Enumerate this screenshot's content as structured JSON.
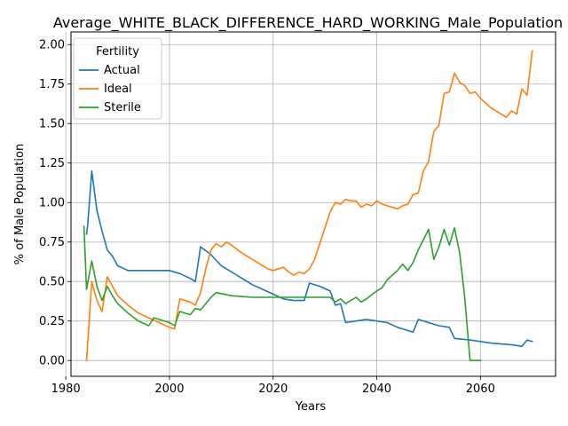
{
  "chart_data": {
    "type": "line",
    "title": "Average_WHITE_BLACK_DIFFERENCE_HARD_WORKING_Male_Population",
    "xlabel": "Years",
    "ylabel": "% of Male Population",
    "xlim": [
      1981,
      2074.5
    ],
    "ylim": [
      -0.1,
      2.08
    ],
    "xticks": [
      1980,
      2000,
      2020,
      2040,
      2060
    ],
    "yticks": [
      0.0,
      0.25,
      0.5,
      0.75,
      1.0,
      1.25,
      1.5,
      1.75,
      2.0
    ],
    "ytick_labels": [
      "0.00",
      "0.25",
      "0.50",
      "0.75",
      "1.00",
      "1.25",
      "1.50",
      "1.75",
      "2.00"
    ],
    "grid": true,
    "legend": {
      "title": "Fertility",
      "position": "top-left"
    },
    "series": [
      {
        "name": "Actual",
        "color": "#1f77b4",
        "x": [
          1984,
          1984.2,
          1985,
          1986,
          1987,
          1988,
          1989,
          1990,
          1992,
          1994,
          1998,
          2000,
          2002,
          2004,
          2005,
          2006,
          2008,
          2010,
          2012,
          2014,
          2016,
          2018,
          2020,
          2022,
          2024,
          2026,
          2027,
          2029,
          2031,
          2032,
          2033,
          2034,
          2036,
          2038,
          2040,
          2042,
          2044,
          2045,
          2046,
          2047,
          2048,
          2050,
          2052,
          2054,
          2055,
          2058,
          2062,
          2066,
          2068,
          2069,
          2070
        ],
        "y": [
          0.8,
          0.85,
          1.2,
          0.95,
          0.82,
          0.7,
          0.66,
          0.6,
          0.57,
          0.57,
          0.57,
          0.57,
          0.55,
          0.52,
          0.5,
          0.72,
          0.67,
          0.6,
          0.56,
          0.52,
          0.48,
          0.45,
          0.42,
          0.39,
          0.38,
          0.38,
          0.49,
          0.47,
          0.44,
          0.35,
          0.36,
          0.24,
          0.25,
          0.26,
          0.25,
          0.24,
          0.21,
          0.2,
          0.19,
          0.18,
          0.26,
          0.24,
          0.22,
          0.21,
          0.14,
          0.13,
          0.11,
          0.1,
          0.09,
          0.13,
          0.12
        ]
      },
      {
        "name": "Ideal",
        "color": "#ff7f0e",
        "x": [
          1984,
          1985,
          1986,
          1987,
          1988,
          1989,
          1990,
          1992,
          1994,
          1996,
          1998,
          2000,
          2001,
          2002,
          2004,
          2005,
          2006,
          2007,
          2008,
          2009,
          2010,
          2011,
          2012,
          2014,
          2016,
          2018,
          2019,
          2020,
          2022,
          2023,
          2024,
          2025,
          2026,
          2027,
          2028,
          2030,
          2031,
          2032,
          2033,
          2034,
          2035,
          2036,
          2037,
          2038,
          2039,
          2040,
          2041,
          2042,
          2043,
          2044,
          2045,
          2046,
          2047,
          2048,
          2049,
          2050,
          2051,
          2052,
          2053,
          2054,
          2055,
          2056,
          2057,
          2058,
          2059,
          2060,
          2061,
          2062,
          2063,
          2064,
          2065,
          2066,
          2067,
          2068,
          2069,
          2070
        ],
        "y": [
          0.0,
          0.5,
          0.38,
          0.31,
          0.53,
          0.47,
          0.41,
          0.35,
          0.3,
          0.27,
          0.24,
          0.21,
          0.2,
          0.39,
          0.37,
          0.35,
          0.43,
          0.58,
          0.7,
          0.74,
          0.72,
          0.75,
          0.73,
          0.68,
          0.64,
          0.6,
          0.58,
          0.57,
          0.59,
          0.56,
          0.54,
          0.56,
          0.55,
          0.58,
          0.64,
          0.84,
          0.94,
          1.0,
          0.99,
          1.02,
          1.01,
          1.01,
          0.97,
          0.99,
          0.98,
          1.01,
          0.99,
          0.98,
          0.97,
          0.96,
          0.98,
          0.99,
          1.05,
          1.06,
          1.2,
          1.26,
          1.45,
          1.49,
          1.69,
          1.7,
          1.82,
          1.76,
          1.74,
          1.69,
          1.7,
          1.66,
          1.63,
          1.6,
          1.58,
          1.56,
          1.54,
          1.58,
          1.56,
          1.72,
          1.68,
          1.96
        ]
      },
      {
        "name": "Sterile",
        "color": "#2ca02c",
        "x": [
          1983.5,
          1984,
          1985,
          1986,
          1987,
          1988,
          1989,
          1990,
          1992,
          1994,
          1996,
          1997,
          1998,
          2000,
          2001,
          2002,
          2004,
          2005,
          2006,
          2008,
          2009,
          2012,
          2016,
          2020,
          2024,
          2028,
          2031,
          2032,
          2033,
          2034,
          2036,
          2037,
          2038,
          2040,
          2041,
          2042,
          2044,
          2045,
          2046,
          2047,
          2048,
          2050,
          2051,
          2052,
          2053,
          2054,
          2055,
          2056,
          2057,
          2058,
          2060
        ],
        "y": [
          0.85,
          0.45,
          0.63,
          0.47,
          0.38,
          0.47,
          0.41,
          0.36,
          0.3,
          0.25,
          0.22,
          0.27,
          0.26,
          0.24,
          0.22,
          0.31,
          0.29,
          0.33,
          0.32,
          0.4,
          0.43,
          0.41,
          0.4,
          0.4,
          0.4,
          0.4,
          0.4,
          0.37,
          0.39,
          0.36,
          0.4,
          0.37,
          0.39,
          0.44,
          0.46,
          0.51,
          0.57,
          0.61,
          0.57,
          0.62,
          0.7,
          0.83,
          0.64,
          0.72,
          0.83,
          0.73,
          0.84,
          0.68,
          0.39,
          0.0,
          0.0
        ]
      }
    ]
  }
}
